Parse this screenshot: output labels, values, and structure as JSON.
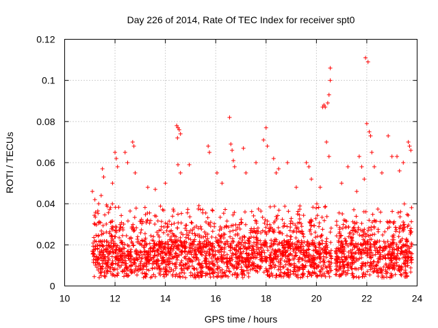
{
  "chart_data": {
    "type": "scatter",
    "title": "Day 226 of 2014, Rate Of TEC Index for receiver spt0",
    "xlabel": "GPS time / hours",
    "ylabel": "ROTI / TECUs",
    "xlim": [
      10,
      24
    ],
    "ylim": [
      0,
      0.12
    ],
    "x_ticks": [
      10,
      12,
      14,
      16,
      18,
      20,
      22,
      24
    ],
    "x_tick_labels": [
      "10",
      "12",
      "14",
      "16",
      "18",
      "20",
      "22",
      "24"
    ],
    "y_ticks": [
      0,
      0.02,
      0.04,
      0.06,
      0.08,
      0.1,
      0.12
    ],
    "y_tick_labels": [
      "0",
      "0.02",
      "0.04",
      "0.06",
      "0.08",
      "0.1",
      "0.12"
    ],
    "grid": true,
    "marker": "+",
    "marker_color": "#ff0000",
    "data_x_range": [
      11.1,
      23.8
    ],
    "series": [
      {
        "name": "ROTI",
        "points": [
          [
            11.1,
            0.046
          ],
          [
            11.2,
            0.042
          ],
          [
            11.35,
            0.04
          ],
          [
            11.45,
            0.044
          ],
          [
            11.5,
            0.057
          ],
          [
            11.55,
            0.053
          ],
          [
            11.9,
            0.05
          ],
          [
            12.0,
            0.065
          ],
          [
            12.05,
            0.062
          ],
          [
            12.1,
            0.058
          ],
          [
            12.4,
            0.065
          ],
          [
            12.5,
            0.06
          ],
          [
            12.7,
            0.07
          ],
          [
            12.75,
            0.068
          ],
          [
            12.8,
            0.055
          ],
          [
            13.3,
            0.048
          ],
          [
            13.6,
            0.047
          ],
          [
            14.0,
            0.05
          ],
          [
            14.45,
            0.078
          ],
          [
            14.5,
            0.077
          ],
          [
            14.55,
            0.076
          ],
          [
            14.6,
            0.074
          ],
          [
            14.48,
            0.072
          ],
          [
            14.5,
            0.059
          ],
          [
            14.6,
            0.055
          ],
          [
            14.95,
            0.059
          ],
          [
            15.7,
            0.068
          ],
          [
            15.75,
            0.065
          ],
          [
            16.05,
            0.055
          ],
          [
            16.25,
            0.05
          ],
          [
            16.55,
            0.082
          ],
          [
            16.6,
            0.069
          ],
          [
            16.65,
            0.066
          ],
          [
            16.7,
            0.061
          ],
          [
            16.75,
            0.058
          ],
          [
            17.1,
            0.067
          ],
          [
            17.2,
            0.055
          ],
          [
            17.6,
            0.06
          ],
          [
            17.9,
            0.071
          ],
          [
            18.0,
            0.077
          ],
          [
            18.05,
            0.068
          ],
          [
            18.3,
            0.062
          ],
          [
            18.4,
            0.055
          ],
          [
            18.5,
            0.057
          ],
          [
            18.85,
            0.06
          ],
          [
            19.2,
            0.048
          ],
          [
            19.6,
            0.06
          ],
          [
            19.7,
            0.058
          ],
          [
            19.8,
            0.052
          ],
          [
            20.15,
            0.048
          ],
          [
            20.25,
            0.087
          ],
          [
            20.3,
            0.088
          ],
          [
            20.35,
            0.087
          ],
          [
            20.45,
            0.089
          ],
          [
            20.4,
            0.07
          ],
          [
            20.5,
            0.093
          ],
          [
            20.55,
            0.1
          ],
          [
            20.55,
            0.106
          ],
          [
            20.5,
            0.063
          ],
          [
            21.0,
            0.05
          ],
          [
            21.25,
            0.058
          ],
          [
            21.6,
            0.046
          ],
          [
            21.7,
            0.063
          ],
          [
            21.8,
            0.058
          ],
          [
            21.9,
            0.052
          ],
          [
            21.95,
            0.111
          ],
          [
            22.05,
            0.109
          ],
          [
            22.0,
            0.079
          ],
          [
            22.1,
            0.075
          ],
          [
            22.15,
            0.073
          ],
          [
            22.2,
            0.065
          ],
          [
            22.3,
            0.058
          ],
          [
            22.6,
            0.055
          ],
          [
            22.85,
            0.073
          ],
          [
            23.0,
            0.063
          ],
          [
            23.2,
            0.063
          ],
          [
            23.3,
            0.056
          ],
          [
            23.45,
            0.06
          ],
          [
            23.65,
            0.07
          ],
          [
            23.7,
            0.068
          ],
          [
            23.75,
            0.066
          ]
        ]
      }
    ]
  }
}
